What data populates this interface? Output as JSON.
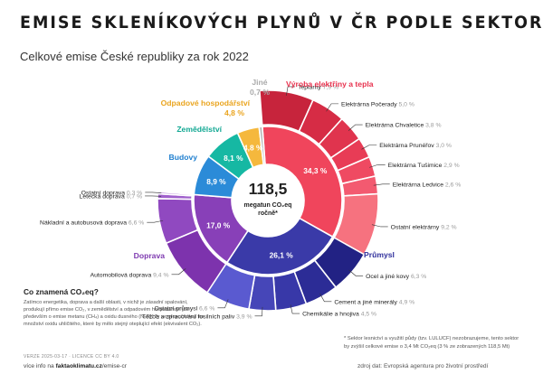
{
  "header": {
    "title": "EMISE SKLENÍKOVÝCH PLYNŮ V ČR PODLE SEKTORŮ",
    "subtitle": "Celkové emise České republiky za rok 2022"
  },
  "center": {
    "value": "118,5",
    "unit_line1": "megatun CO₂eq",
    "unit_line2": "ročně*"
  },
  "chart_data": {
    "type": "donut",
    "total": 118.5,
    "unit": "megatun CO₂eq ročně",
    "inner_ring": [
      {
        "name": "Výroba elektřiny a tepla",
        "value": 34.3,
        "label": "34,3 %",
        "color": "#f0455c",
        "label_color": "#e8334f"
      },
      {
        "name": "Průmysl",
        "value": 26.1,
        "label": "26,1 %",
        "color": "#3a3aa8",
        "label_color": "#2f2f9c"
      },
      {
        "name": "Doprava",
        "value": 17.0,
        "label": "17,0 %",
        "color": "#8840b8",
        "label_color": "#7e3ab0"
      },
      {
        "name": "Budovy",
        "value": 8.9,
        "label": "8,9 %",
        "color": "#2b8bd8",
        "label_color": "#1f7fcf"
      },
      {
        "name": "Zemědělství",
        "value": 8.1,
        "label": "8,1 %",
        "color": "#16b8a3",
        "label_color": "#12a893"
      },
      {
        "name": "Odpadové hospodářství",
        "value": 4.8,
        "label": "4,8 %",
        "color": "#f5b83d",
        "label_color": "#eaa520"
      },
      {
        "name": "Jiné",
        "value": 0.7,
        "label": "0,7 %",
        "color": "#b9b9b9",
        "label_color": "#aaaaaa"
      }
    ],
    "outer_ring": [
      {
        "name": "Teplárny",
        "value": 7.9,
        "label": "7,9 %",
        "group": "Výroba elektřiny a tepla",
        "color": "#c7243c"
      },
      {
        "name": "Elektrárna Počerady",
        "value": 5.0,
        "label": "5,0 %",
        "group": "Výroba elektřiny a tepla",
        "color": "#d62c45"
      },
      {
        "name": "Elektrárna Chvaletice",
        "value": 3.8,
        "label": "3,8 %",
        "group": "Výroba elektřiny a tepla",
        "color": "#e0344e"
      },
      {
        "name": "Elektrárna Prunéřov",
        "value": 3.0,
        "label": "3,0 %",
        "group": "Výroba elektřiny a tepla",
        "color": "#e83c56"
      },
      {
        "name": "Elektrárna Tušimice",
        "value": 2.9,
        "label": "2,9 %",
        "group": "Výroba elektřiny a tepla",
        "color": "#ef4a62"
      },
      {
        "name": "Elektrárna Ledvice",
        "value": 2.6,
        "label": "2,6 %",
        "group": "Výroba elektřiny a tepla",
        "color": "#f35a70"
      },
      {
        "name": "Ostatní elektrárny",
        "value": 9.2,
        "label": "9,2 %",
        "group": "Výroba elektřiny a tepla",
        "color": "#f6727f"
      },
      {
        "name": "Ocel a jiné kovy",
        "value": 6.3,
        "label": "6,3 %",
        "group": "Průmysl",
        "color": "#222284"
      },
      {
        "name": "Cement a jiné minerály",
        "value": 4.9,
        "label": "4,9 %",
        "group": "Průmysl",
        "color": "#2c2c96"
      },
      {
        "name": "Chemikálie a hnojiva",
        "value": 4.5,
        "label": "4,5 %",
        "group": "Průmysl",
        "color": "#3838a8"
      },
      {
        "name": "Těžba a zpracování fosilních paliv",
        "value": 3.9,
        "label": "3,9 %",
        "group": "Průmysl",
        "color": "#4646b8"
      },
      {
        "name": "Ostatní průmysl",
        "value": 6.6,
        "label": "6,6 %",
        "group": "Průmysl",
        "color": "#5a5ad0"
      },
      {
        "name": "Automobilová doprava",
        "value": 9.4,
        "label": "9,4 %",
        "group": "Doprava",
        "color": "#7d33ad"
      },
      {
        "name": "Nákladní a autobusová doprava",
        "value": 6.6,
        "label": "6,6 %",
        "group": "Doprava",
        "color": "#9049c0"
      },
      {
        "name": "Letecká doprava",
        "value": 0.7,
        "label": "0,7 %",
        "group": "Doprava",
        "color": "#a060cc"
      },
      {
        "name": "Ostatní doprava",
        "value": 0.3,
        "label": "0,3 %",
        "group": "Doprava",
        "color": "#b07ad6"
      }
    ],
    "labeled_outer_sectors": [
      "Výroba elektřiny a tepla",
      "Průmysl",
      "Doprava"
    ]
  },
  "notes": {
    "heading": "Co znamená CO₂eq?",
    "body": "Zatímco energetika, doprava a další oblasti, v nichž je zásadní spalování, produkují přímo emise CO₂, v zemědělství a odpadovém hospodářství jde především o emise metanu (CH₄) a oxidu dusného (N₂O). Ty se přepočítávají na množství oxidu uhličitého, které by mělo stejný oteplující efekt (ekvivalent CO₂).",
    "version": "VERZE 2025-03-17 · LICENCE CC BY 4.0",
    "more_prefix": "více info na",
    "more_site": "faktaoklimatu.cz",
    "more_path": "/emise-cr"
  },
  "footnote": {
    "text": "* Sektor lesnictví a využití půdy (tzv. LULUCF) nezobrazujeme, tento sektor by zvýšil celkové emise o 3,4 Mt CO₂eq (3 % ze zobrazených 118,5 Mt)",
    "source": "zdroj dat: Evropská agentura pro životní prostředí"
  }
}
